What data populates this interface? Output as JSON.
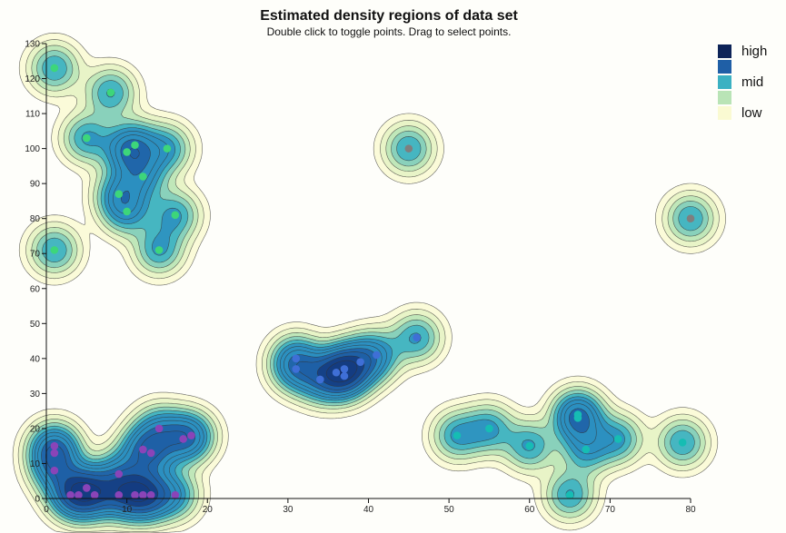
{
  "header": {
    "title": "Estimated density regions of data set",
    "subtitle": "Double click to toggle points. Drag to select points."
  },
  "colors": {
    "background": "#fefefa",
    "contour_stroke": "#333333",
    "outlier_point": "#7f7f7f"
  },
  "legend": {
    "items": [
      {
        "label": "high",
        "color": "#0d2357"
      },
      {
        "label": "",
        "color": "#1f5fa6"
      },
      {
        "label": "mid",
        "color": "#3bb1c2"
      },
      {
        "label": "",
        "color": "#b9e4b6"
      },
      {
        "label": "low",
        "color": "#fafad2"
      }
    ]
  },
  "chart_data": {
    "type": "scatter",
    "overlay": "density-contours",
    "title": "Estimated density regions of data set",
    "subtitle": "Double click to toggle points. Drag to select points.",
    "xlabel": "",
    "ylabel": "",
    "xlim": [
      0,
      80
    ],
    "ylim": [
      0,
      130
    ],
    "x_ticks": [
      0,
      10,
      20,
      30,
      40,
      50,
      60,
      70,
      80
    ],
    "y_ticks": [
      0,
      10,
      20,
      30,
      40,
      50,
      60,
      70,
      80,
      90,
      100,
      110,
      120,
      130
    ],
    "grid": false,
    "legend_position": "top-right",
    "legend_labels": [
      "high",
      "mid",
      "low"
    ],
    "density_colors": [
      "#fafad2",
      "#e4f2c3",
      "#b9e4b6",
      "#7fcdbb",
      "#3bb1c2",
      "#2c8fbf",
      "#1f5fa6",
      "#143c80",
      "#0d2357"
    ],
    "clusters": [
      {
        "color": "#3dd67a",
        "points": [
          [
            1,
            123
          ],
          [
            8,
            116
          ],
          [
            5,
            103
          ],
          [
            11,
            101
          ],
          [
            10,
            99
          ],
          [
            15,
            100
          ],
          [
            12,
            92
          ],
          [
            9,
            87
          ],
          [
            10,
            82
          ],
          [
            16,
            81
          ],
          [
            14,
            71
          ],
          [
            1,
            71
          ]
        ]
      },
      {
        "color": "#8a44b8",
        "points": [
          [
            1,
            15
          ],
          [
            1,
            13
          ],
          [
            1,
            8
          ],
          [
            3,
            1
          ],
          [
            4,
            1
          ],
          [
            5,
            3
          ],
          [
            6,
            1
          ],
          [
            9,
            1
          ],
          [
            9,
            7
          ],
          [
            11,
            1
          ],
          [
            12,
            1
          ],
          [
            13,
            1
          ],
          [
            12,
            14
          ],
          [
            13,
            13
          ],
          [
            14,
            20
          ],
          [
            17,
            17
          ],
          [
            18,
            18
          ],
          [
            16,
            1
          ]
        ]
      },
      {
        "color": "#3f6fd6",
        "points": [
          [
            31,
            40
          ],
          [
            31,
            37
          ],
          [
            34,
            34
          ],
          [
            36,
            36
          ],
          [
            37,
            35
          ],
          [
            37,
            37
          ],
          [
            39,
            39
          ],
          [
            41,
            41
          ],
          [
            46,
            46
          ]
        ]
      },
      {
        "color": "#16bdb3",
        "points": [
          [
            51,
            18
          ],
          [
            55,
            20
          ],
          [
            60,
            15
          ],
          [
            65,
            1
          ],
          [
            66,
            24
          ],
          [
            66,
            23
          ],
          [
            67,
            14
          ],
          [
            71,
            17
          ],
          [
            79,
            16
          ]
        ]
      },
      {
        "color": "#7f7f7f",
        "points": [
          [
            45,
            100
          ],
          [
            80,
            80
          ]
        ]
      }
    ]
  }
}
